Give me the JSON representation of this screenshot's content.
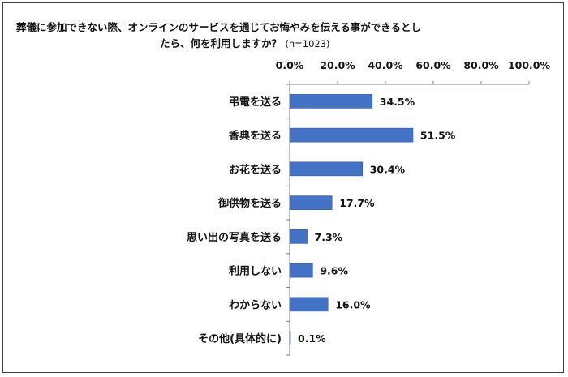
{
  "title": {
    "line1": "葬儀に参加できない際、オンラインのサービスを通じてお悔やみを伝える事ができるとし",
    "line2": "たら、何を利用しますか？",
    "n_label": "(n=1023)"
  },
  "chart_data": {
    "type": "bar",
    "orientation": "horizontal",
    "categories": [
      "弔電を送る",
      "香典を送る",
      "お花を送る",
      "御供物を送る",
      "思い出の写真を送る",
      "利用しない",
      "わからない",
      "その他(具体的に)"
    ],
    "values": [
      34.5,
      51.5,
      30.4,
      17.7,
      7.3,
      9.6,
      16.0,
      0.1
    ],
    "value_labels": [
      "34.5%",
      "51.5%",
      "30.4%",
      "17.7%",
      "7.3%",
      "9.6%",
      "16.0%",
      "0.1%"
    ],
    "xlim": [
      0,
      100
    ],
    "x_ticks": [
      0,
      20,
      40,
      60,
      80,
      100
    ],
    "x_tick_labels": [
      "0.0%",
      "20.0%",
      "40.0%",
      "60.0%",
      "80.0%",
      "100.0%"
    ],
    "x_axis_position": "top",
    "grid": false,
    "bar_color": "#4472C4",
    "bar_edge_color": "#2f5597"
  }
}
